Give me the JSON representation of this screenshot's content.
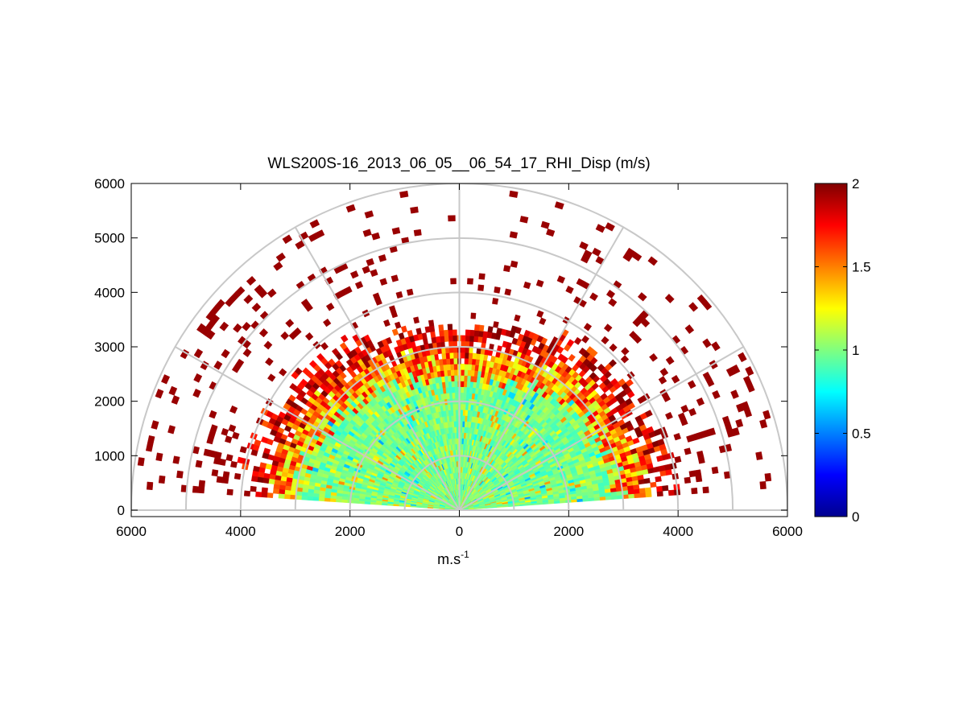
{
  "chart_data": {
    "type": "heatmap",
    "subtype": "polar-rhi",
    "title": "WLS200S-16_2013_06_05__06_54_17_RHI_Disp (m/s)",
    "xlabel_base": "m.s",
    "xlabel_sup": "-1",
    "xlim": [
      -6000,
      6000
    ],
    "ylim": [
      0,
      6000
    ],
    "x_ticks": [
      -6000,
      -4000,
      -2000,
      0,
      2000,
      4000,
      6000
    ],
    "x_tick_labels": [
      "6000",
      "4000",
      "2000",
      "0",
      "2000",
      "4000",
      "6000"
    ],
    "y_ticks": [
      0,
      1000,
      2000,
      3000,
      4000,
      5000,
      6000
    ],
    "y_tick_labels": [
      "0",
      "1000",
      "2000",
      "3000",
      "4000",
      "5000",
      "6000"
    ],
    "polar_grid": {
      "ring_radii": [
        1000,
        2000,
        3000,
        4000,
        5000,
        6000
      ],
      "spoke_angles_deg": [
        0,
        30,
        60,
        90,
        120,
        150,
        180
      ]
    },
    "colorbar": {
      "colormap": "jet",
      "clim": [
        0,
        2
      ],
      "ticks": [
        0,
        0.5,
        1,
        1.5,
        2
      ],
      "tick_labels": [
        "0",
        "0.5",
        "1",
        "1.5",
        "2"
      ]
    },
    "scan": {
      "elevation_range_deg": [
        4,
        176
      ],
      "max_range_m": 5900,
      "description": "velocity dispersion field, ~0.8-1.1 m/s near the lidar, rising to 2 m/s beyond ~2800-3500 m range"
    }
  }
}
